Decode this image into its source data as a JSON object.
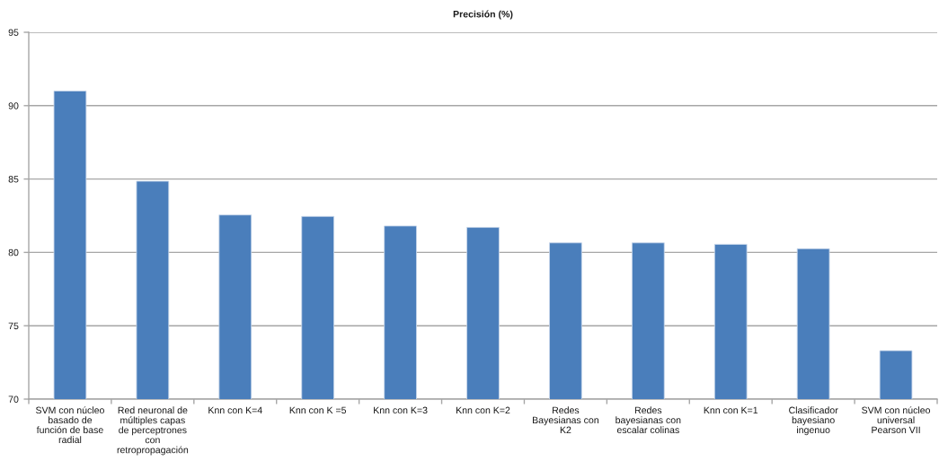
{
  "chart_data": {
    "type": "bar",
    "title": "Precisión (%)",
    "categories": [
      "SVM con núcleo\nbasado de\nfunción de base\nradial",
      "Red neuronal de\nmúltiples capas\nde perceptrones\ncon\nretropropagación",
      "Knn con K=4",
      "Knn con K =5",
      "Knn con K=3",
      "Knn con K=2",
      "Redes\nBayesianas con\nK2",
      "Redes\nbayesianas con\nescalar colinas",
      "Knn con K=1",
      "Clasificador\nbayesiano\ningenuo",
      "SVM con núcleo\nuniversal\nPearson VII"
    ],
    "values": [
      91.0,
      84.85,
      82.55,
      82.45,
      81.8,
      81.7,
      80.65,
      80.65,
      80.55,
      80.25,
      73.3
    ],
    "color": "#4a7ebb",
    "ylim": [
      70,
      95
    ],
    "yticks": [
      70,
      75,
      80,
      85,
      90,
      95
    ],
    "grid": "y"
  }
}
